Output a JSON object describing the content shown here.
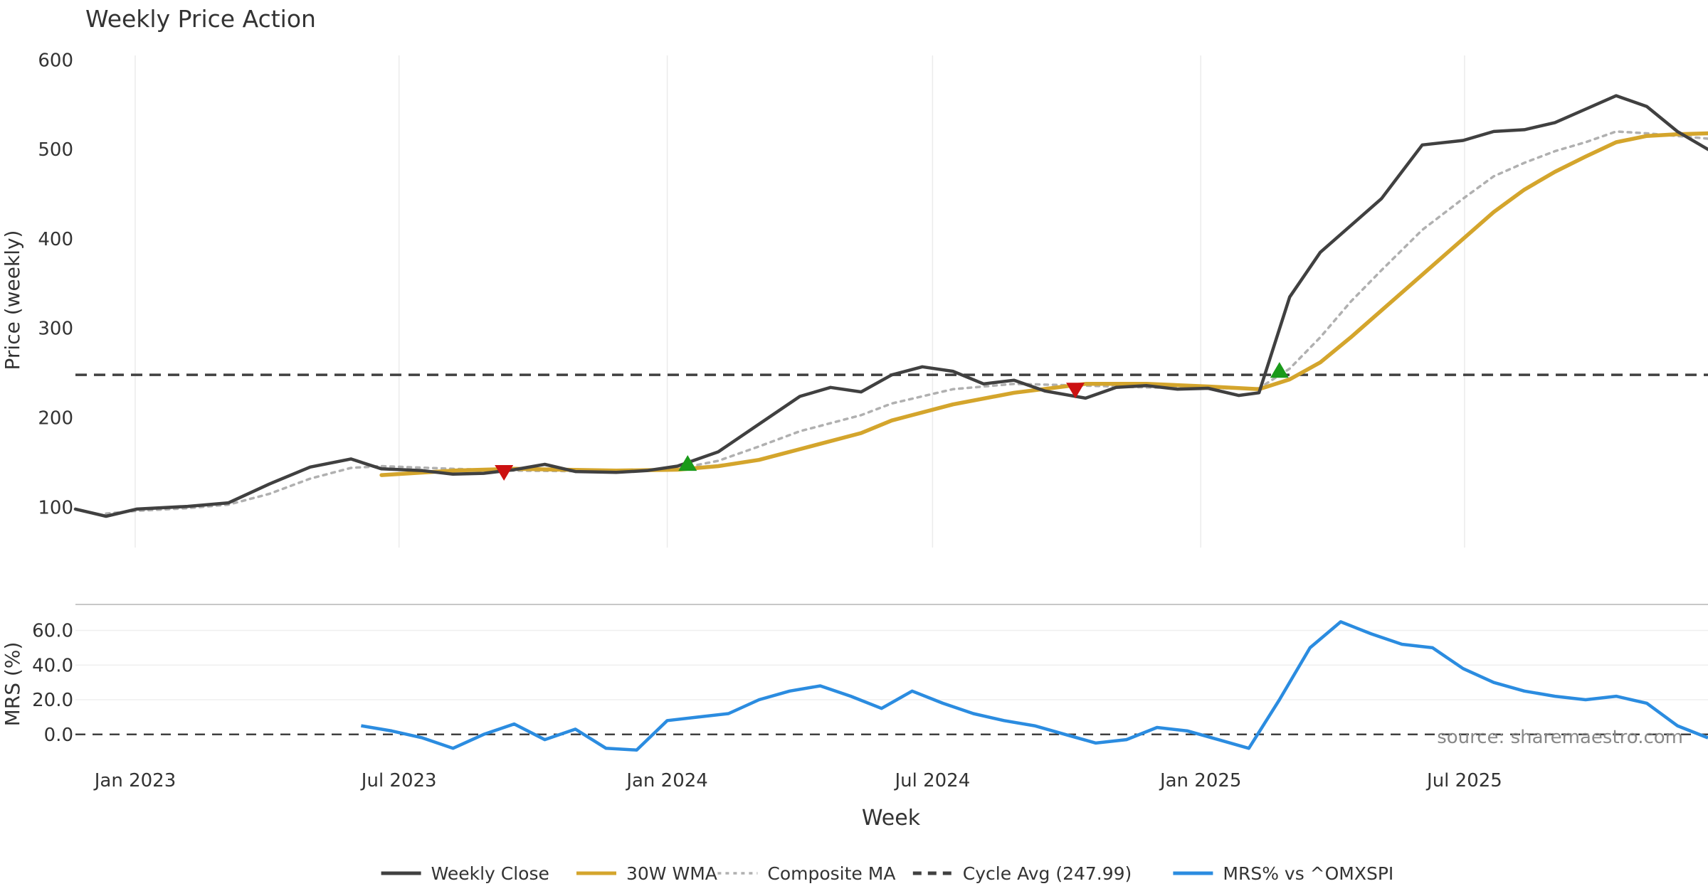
{
  "chart_data": {
    "type": "line",
    "title": "Weekly Price Action",
    "source_note": "source: sharemaestro.com",
    "xlabel": "Week",
    "x_range": [
      "2022-11-21",
      "2025-12-15"
    ],
    "x_ticks": [
      {
        "date": "2023-01-01",
        "label": "Jan 2023"
      },
      {
        "date": "2023-07-01",
        "label": "Jul 2023"
      },
      {
        "date": "2024-01-01",
        "label": "Jan 2024"
      },
      {
        "date": "2024-07-01",
        "label": "Jul 2024"
      },
      {
        "date": "2025-01-01",
        "label": "Jan 2025"
      },
      {
        "date": "2025-07-01",
        "label": "Jul 2025"
      }
    ],
    "price_panel": {
      "ylabel": "Price (weekly)",
      "ylim": [
        55,
        605
      ],
      "y_ticks": [
        100,
        200,
        300,
        400,
        500,
        600
      ],
      "grid": "vertical",
      "cycle_avg": 247.99,
      "series": [
        {
          "name": "Weekly Close",
          "color": "#404040",
          "style": "solid",
          "points": [
            [
              "2022-11-21",
              98
            ],
            [
              "2022-12-12",
              90
            ],
            [
              "2023-01-02",
              98
            ],
            [
              "2023-02-06",
              101
            ],
            [
              "2023-03-06",
              105
            ],
            [
              "2023-04-03",
              126
            ],
            [
              "2023-05-01",
              145
            ],
            [
              "2023-05-29",
              154
            ],
            [
              "2023-06-19",
              143
            ],
            [
              "2023-07-17",
              141
            ],
            [
              "2023-08-07",
              137
            ],
            [
              "2023-08-28",
              138
            ],
            [
              "2023-09-18",
              142
            ],
            [
              "2023-10-09",
              148
            ],
            [
              "2023-10-30",
              140
            ],
            [
              "2023-11-27",
              139
            ],
            [
              "2023-12-18",
              141
            ],
            [
              "2024-01-08",
              146
            ],
            [
              "2024-02-05",
              162
            ],
            [
              "2024-03-04",
              193
            ],
            [
              "2024-04-01",
              224
            ],
            [
              "2024-04-22",
              234
            ],
            [
              "2024-05-13",
              229
            ],
            [
              "2024-06-03",
              248
            ],
            [
              "2024-06-24",
              257
            ],
            [
              "2024-07-15",
              252
            ],
            [
              "2024-08-05",
              238
            ],
            [
              "2024-08-26",
              242
            ],
            [
              "2024-09-16",
              230
            ],
            [
              "2024-10-14",
              222
            ],
            [
              "2024-11-04",
              234
            ],
            [
              "2024-11-25",
              236
            ],
            [
              "2024-12-16",
              232
            ],
            [
              "2025-01-06",
              233
            ],
            [
              "2025-01-27",
              225
            ],
            [
              "2025-02-10",
              228
            ],
            [
              "2025-03-03",
              335
            ],
            [
              "2025-03-24",
              385
            ],
            [
              "2025-04-14",
              415
            ],
            [
              "2025-05-05",
              445
            ],
            [
              "2025-06-02",
              505
            ],
            [
              "2025-06-30",
              510
            ],
            [
              "2025-07-21",
              520
            ],
            [
              "2025-08-11",
              522
            ],
            [
              "2025-09-01",
              530
            ],
            [
              "2025-09-22",
              545
            ],
            [
              "2025-10-13",
              560
            ],
            [
              "2025-11-03",
              548
            ],
            [
              "2025-11-24",
              520
            ],
            [
              "2025-12-15",
              500
            ]
          ]
        },
        {
          "name": "30W WMA",
          "color": "#d4a52c",
          "style": "solid",
          "points": [
            [
              "2023-06-19",
              136
            ],
            [
              "2023-08-07",
              141
            ],
            [
              "2023-09-18",
              143
            ],
            [
              "2023-11-27",
              141
            ],
            [
              "2024-01-08",
              142
            ],
            [
              "2024-02-05",
              146
            ],
            [
              "2024-03-04",
              153
            ],
            [
              "2024-04-01",
              165
            ],
            [
              "2024-05-13",
              183
            ],
            [
              "2024-06-03",
              197
            ],
            [
              "2024-07-15",
              215
            ],
            [
              "2024-08-26",
              228
            ],
            [
              "2024-10-14",
              238
            ],
            [
              "2024-11-25",
              238
            ],
            [
              "2025-01-06",
              235
            ],
            [
              "2025-02-10",
              232
            ],
            [
              "2025-03-03",
              243
            ],
            [
              "2025-03-24",
              262
            ],
            [
              "2025-04-14",
              290
            ],
            [
              "2025-05-05",
              320
            ],
            [
              "2025-06-02",
              360
            ],
            [
              "2025-06-30",
              400
            ],
            [
              "2025-07-21",
              430
            ],
            [
              "2025-08-11",
              455
            ],
            [
              "2025-09-01",
              475
            ],
            [
              "2025-09-22",
              492
            ],
            [
              "2025-10-13",
              508
            ],
            [
              "2025-11-03",
              515
            ],
            [
              "2025-11-24",
              517
            ],
            [
              "2025-12-15",
              518
            ]
          ]
        },
        {
          "name": "Composite MA",
          "color": "#b0b0b0",
          "style": "dotted",
          "points": [
            [
              "2022-12-12",
              93
            ],
            [
              "2023-01-02",
              96
            ],
            [
              "2023-02-06",
              99
            ],
            [
              "2023-03-06",
              103
            ],
            [
              "2023-04-03",
              115
            ],
            [
              "2023-05-01",
              132
            ],
            [
              "2023-05-29",
              144
            ],
            [
              "2023-06-19",
              146
            ],
            [
              "2023-08-07",
              143
            ],
            [
              "2023-09-18",
              141
            ],
            [
              "2023-11-27",
              140
            ],
            [
              "2024-01-08",
              143
            ],
            [
              "2024-02-05",
              152
            ],
            [
              "2024-03-04",
              168
            ],
            [
              "2024-04-01",
              185
            ],
            [
              "2024-05-13",
              203
            ],
            [
              "2024-06-03",
              216
            ],
            [
              "2024-07-15",
              232
            ],
            [
              "2024-08-26",
              238
            ],
            [
              "2024-10-14",
              236
            ],
            [
              "2024-11-25",
              234
            ],
            [
              "2025-01-06",
              233
            ],
            [
              "2025-02-10",
              233
            ],
            [
              "2025-03-03",
              255
            ],
            [
              "2025-03-24",
              290
            ],
            [
              "2025-04-14",
              330
            ],
            [
              "2025-05-05",
              365
            ],
            [
              "2025-06-02",
              410
            ],
            [
              "2025-06-30",
              445
            ],
            [
              "2025-07-21",
              470
            ],
            [
              "2025-08-11",
              485
            ],
            [
              "2025-09-01",
              498
            ],
            [
              "2025-09-22",
              508
            ],
            [
              "2025-10-13",
              520
            ],
            [
              "2025-11-03",
              518
            ],
            [
              "2025-11-24",
              515
            ],
            [
              "2025-12-15",
              512
            ]
          ]
        }
      ],
      "markers": [
        {
          "date": "2023-09-11",
          "value": 140,
          "kind": "sell",
          "color": "#cc1111"
        },
        {
          "date": "2024-01-15",
          "value": 148,
          "kind": "buy",
          "color": "#1a9a1a"
        },
        {
          "date": "2024-10-07",
          "value": 232,
          "kind": "sell",
          "color": "#cc1111"
        },
        {
          "date": "2025-02-24",
          "value": 252,
          "kind": "buy",
          "color": "#1a9a1a"
        }
      ]
    },
    "mrs_panel": {
      "ylabel": "MRS (%)",
      "ylim": [
        -12,
        75
      ],
      "y_ticks": [
        0.0,
        20.0,
        40.0,
        60.0
      ],
      "y_tick_labels": [
        "0.0",
        "20.0",
        "40.0",
        "60.0"
      ],
      "series": [
        {
          "name": "MRS% vs ^OMXSPI",
          "color": "#2b8ce0",
          "style": "solid",
          "points": [
            [
              "2023-06-05",
              5
            ],
            [
              "2023-06-26",
              2
            ],
            [
              "2023-07-17",
              -2
            ],
            [
              "2023-08-07",
              -8
            ],
            [
              "2023-08-28",
              0
            ],
            [
              "2023-09-18",
              6
            ],
            [
              "2023-10-09",
              -3
            ],
            [
              "2023-10-30",
              3
            ],
            [
              "2023-11-20",
              -8
            ],
            [
              "2023-12-11",
              -9
            ],
            [
              "2024-01-01",
              8
            ],
            [
              "2024-01-22",
              10
            ],
            [
              "2024-02-12",
              12
            ],
            [
              "2024-03-04",
              20
            ],
            [
              "2024-03-25",
              25
            ],
            [
              "2024-04-15",
              28
            ],
            [
              "2024-05-06",
              22
            ],
            [
              "2024-05-27",
              15
            ],
            [
              "2024-06-17",
              25
            ],
            [
              "2024-07-08",
              18
            ],
            [
              "2024-07-29",
              12
            ],
            [
              "2024-08-19",
              8
            ],
            [
              "2024-09-09",
              5
            ],
            [
              "2024-09-30",
              0
            ],
            [
              "2024-10-21",
              -5
            ],
            [
              "2024-11-11",
              -3
            ],
            [
              "2024-12-02",
              4
            ],
            [
              "2024-12-23",
              2
            ],
            [
              "2025-01-13",
              -3
            ],
            [
              "2025-02-03",
              -8
            ],
            [
              "2025-02-24",
              20
            ],
            [
              "2025-03-17",
              50
            ],
            [
              "2025-04-07",
              65
            ],
            [
              "2025-04-28",
              58
            ],
            [
              "2025-05-19",
              52
            ],
            [
              "2025-06-09",
              50
            ],
            [
              "2025-06-30",
              38
            ],
            [
              "2025-07-21",
              30
            ],
            [
              "2025-08-11",
              25
            ],
            [
              "2025-09-01",
              22
            ],
            [
              "2025-09-22",
              20
            ],
            [
              "2025-10-13",
              22
            ],
            [
              "2025-11-03",
              18
            ],
            [
              "2025-11-24",
              5
            ],
            [
              "2025-12-15",
              -2
            ]
          ]
        }
      ]
    },
    "legend": {
      "placement": "bottom-center",
      "items": [
        {
          "label": "Weekly Close",
          "color": "#404040",
          "style": "solid"
        },
        {
          "label": "30W WMA",
          "color": "#d4a52c",
          "style": "solid"
        },
        {
          "label": "Composite MA",
          "color": "#b0b0b0",
          "style": "dotted"
        },
        {
          "label": "Cycle Avg (247.99)",
          "color": "#404040",
          "style": "dashed"
        },
        {
          "label": "MRS% vs ^OMXSPI",
          "color": "#2b8ce0",
          "style": "solid"
        }
      ]
    }
  }
}
